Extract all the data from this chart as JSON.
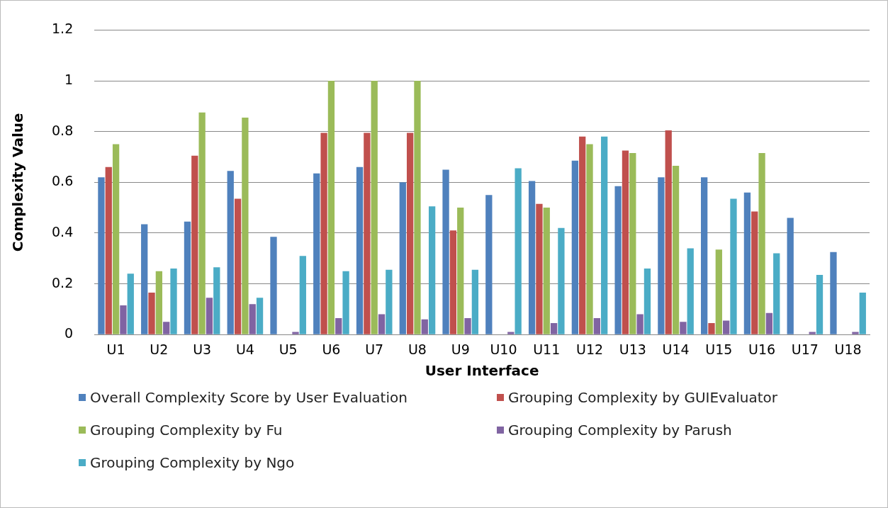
{
  "chart_data": {
    "type": "bar",
    "xlabel": "User Interface",
    "ylabel": "Complexity Value",
    "categories": [
      "U1",
      "U2",
      "U3",
      "U4",
      "U5",
      "U6",
      "U7",
      "U8",
      "U9",
      "U10",
      "U11",
      "U12",
      "U13",
      "U14",
      "U15",
      "U16",
      "U17",
      "U18"
    ],
    "series": [
      {
        "name": "Overall Complexity Score by User Evaluation",
        "color": "#4f81bd",
        "values": [
          0.62,
          0.435,
          0.445,
          0.645,
          0.385,
          0.635,
          0.66,
          0.6,
          0.65,
          0.55,
          0.605,
          0.685,
          0.585,
          0.62,
          0.62,
          0.56,
          0.46,
          0.325
        ]
      },
      {
        "name": "Grouping Complexity by GUIEvaluator",
        "color": "#c0504d",
        "values": [
          0.66,
          0.165,
          0.705,
          0.535,
          0,
          0.795,
          0.795,
          0.795,
          0.41,
          0,
          0.515,
          0.78,
          0.725,
          0.805,
          0.045,
          0.485,
          0,
          0
        ]
      },
      {
        "name": "Grouping Complexity by Fu",
        "color": "#9bbb59",
        "values": [
          0.75,
          0.25,
          0.875,
          0.855,
          0,
          1,
          1,
          1,
          0.5,
          0,
          0.5,
          0.75,
          0.715,
          0.665,
          0.335,
          0.715,
          0,
          0
        ]
      },
      {
        "name": "Grouping Complexity by Parush",
        "color": "#8064a2",
        "values": [
          0.115,
          0.05,
          0.145,
          0.12,
          0.01,
          0.065,
          0.08,
          0.06,
          0.065,
          0.01,
          0.045,
          0.065,
          0.08,
          0.05,
          0.055,
          0.085,
          0.01,
          0.01
        ]
      },
      {
        "name": "Grouping Complexity by Ngo",
        "color": "#4bacc6",
        "values": [
          0.24,
          0.26,
          0.265,
          0.145,
          0.31,
          0.25,
          0.255,
          0.505,
          0.255,
          0.655,
          0.42,
          0.78,
          0.26,
          0.34,
          0.535,
          0.32,
          0.235,
          0.165
        ]
      }
    ],
    "ylim": [
      0,
      1.2
    ],
    "yticks": [
      0,
      0.2,
      0.4,
      0.6,
      0.8,
      1,
      1.2
    ],
    "grid": "y",
    "legend": "bottom"
  }
}
